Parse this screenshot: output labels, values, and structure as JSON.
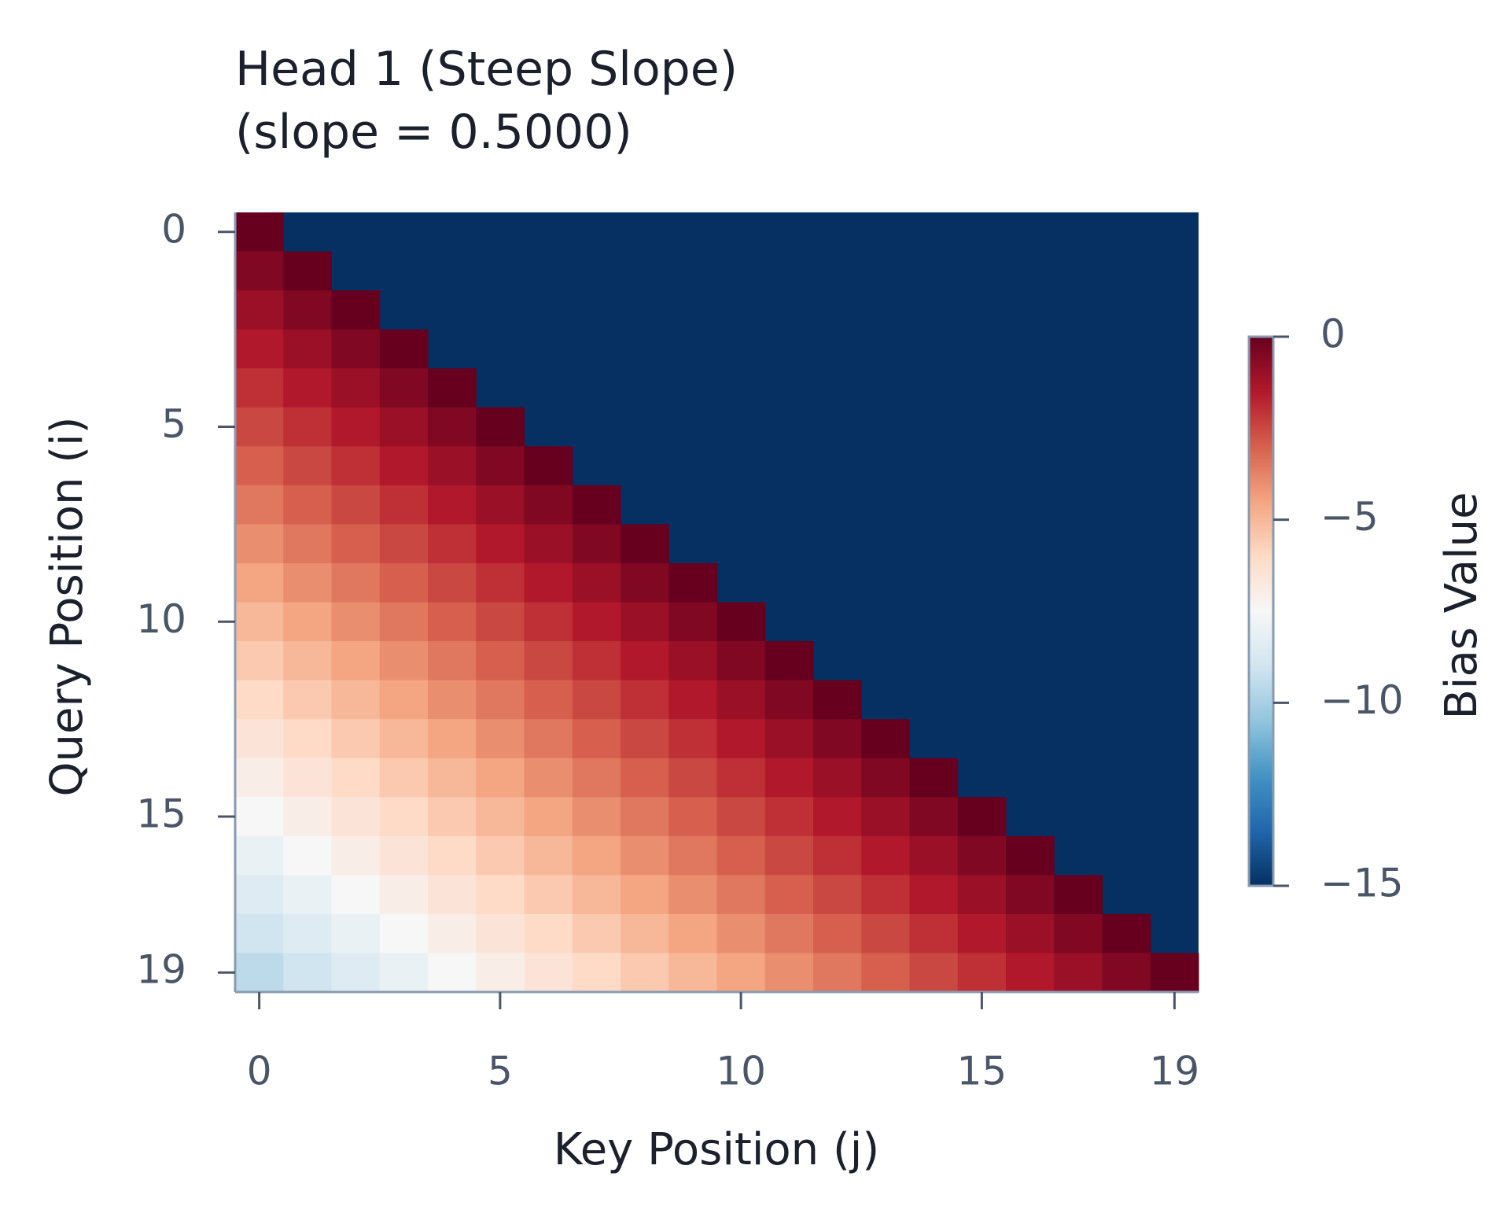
{
  "chart_data": {
    "type": "heatmap",
    "title": "Head 1 (Steep Slope)",
    "subtitle": "(slope = 0.5000)",
    "x_label": "Key Position (j)",
    "y_label": "Query Position (i)",
    "colorbar_label": "Bias Value",
    "xlim": [
      -0.5,
      19.5
    ],
    "ylim": [
      19.5,
      -0.5
    ],
    "xticks": [
      0,
      5,
      10,
      15,
      19
    ],
    "yticks": [
      0,
      5,
      10,
      15,
      19
    ],
    "clim": [
      -15,
      0
    ],
    "cticks": [
      0,
      {
        "value": -5,
        "label": "−5"
      },
      {
        "value": -10,
        "label": "−10"
      },
      {
        "value": -15,
        "label": "−15"
      }
    ],
    "colormap": [
      "#053061",
      "#2166ac",
      "#4393c3",
      "#92c5de",
      "#d1e5f0",
      "#f7f7f7",
      "#fddbc7",
      "#f4a582",
      "#d6604d",
      "#b2182b",
      "#67001f"
    ],
    "mask_color": "#053061",
    "values": [
      [
        0,
        null,
        null,
        null,
        null,
        null,
        null,
        null,
        null,
        null,
        null,
        null,
        null,
        null,
        null,
        null,
        null,
        null,
        null,
        null
      ],
      [
        -0.5,
        0,
        null,
        null,
        null,
        null,
        null,
        null,
        null,
        null,
        null,
        null,
        null,
        null,
        null,
        null,
        null,
        null,
        null,
        null
      ],
      [
        -1,
        -0.5,
        0,
        null,
        null,
        null,
        null,
        null,
        null,
        null,
        null,
        null,
        null,
        null,
        null,
        null,
        null,
        null,
        null,
        null
      ],
      [
        -1.5,
        -1,
        -0.5,
        0,
        null,
        null,
        null,
        null,
        null,
        null,
        null,
        null,
        null,
        null,
        null,
        null,
        null,
        null,
        null,
        null
      ],
      [
        -2,
        -1.5,
        -1,
        -0.5,
        0,
        null,
        null,
        null,
        null,
        null,
        null,
        null,
        null,
        null,
        null,
        null,
        null,
        null,
        null,
        null
      ],
      [
        -2.5,
        -2,
        -1.5,
        -1,
        -0.5,
        0,
        null,
        null,
        null,
        null,
        null,
        null,
        null,
        null,
        null,
        null,
        null,
        null,
        null,
        null
      ],
      [
        -3,
        -2.5,
        -2,
        -1.5,
        -1,
        -0.5,
        0,
        null,
        null,
        null,
        null,
        null,
        null,
        null,
        null,
        null,
        null,
        null,
        null,
        null
      ],
      [
        -3.5,
        -3,
        -2.5,
        -2,
        -1.5,
        -1,
        -0.5,
        0,
        null,
        null,
        null,
        null,
        null,
        null,
        null,
        null,
        null,
        null,
        null,
        null
      ],
      [
        -4,
        -3.5,
        -3,
        -2.5,
        -2,
        -1.5,
        -1,
        -0.5,
        0,
        null,
        null,
        null,
        null,
        null,
        null,
        null,
        null,
        null,
        null,
        null
      ],
      [
        -4.5,
        -4,
        -3.5,
        -3,
        -2.5,
        -2,
        -1.5,
        -1,
        -0.5,
        0,
        null,
        null,
        null,
        null,
        null,
        null,
        null,
        null,
        null,
        null
      ],
      [
        -5,
        -4.5,
        -4,
        -3.5,
        -3,
        -2.5,
        -2,
        -1.5,
        -1,
        -0.5,
        0,
        null,
        null,
        null,
        null,
        null,
        null,
        null,
        null,
        null
      ],
      [
        -5.5,
        -5,
        -4.5,
        -4,
        -3.5,
        -3,
        -2.5,
        -2,
        -1.5,
        -1,
        -0.5,
        0,
        null,
        null,
        null,
        null,
        null,
        null,
        null,
        null
      ],
      [
        -6,
        -5.5,
        -5,
        -4.5,
        -4,
        -3.5,
        -3,
        -2.5,
        -2,
        -1.5,
        -1,
        -0.5,
        0,
        null,
        null,
        null,
        null,
        null,
        null,
        null
      ],
      [
        -6.5,
        -6,
        -5.5,
        -5,
        -4.5,
        -4,
        -3.5,
        -3,
        -2.5,
        -2,
        -1.5,
        -1,
        -0.5,
        0,
        null,
        null,
        null,
        null,
        null,
        null
      ],
      [
        -7,
        -6.5,
        -6,
        -5.5,
        -5,
        -4.5,
        -4,
        -3.5,
        -3,
        -2.5,
        -2,
        -1.5,
        -1,
        -0.5,
        0,
        null,
        null,
        null,
        null,
        null
      ],
      [
        -7.5,
        -7,
        -6.5,
        -6,
        -5.5,
        -5,
        -4.5,
        -4,
        -3.5,
        -3,
        -2.5,
        -2,
        -1.5,
        -1,
        -0.5,
        0,
        null,
        null,
        null,
        null
      ],
      [
        -8,
        -7.5,
        -7,
        -6.5,
        -6,
        -5.5,
        -5,
        -4.5,
        -4,
        -3.5,
        -3,
        -2.5,
        -2,
        -1.5,
        -1,
        -0.5,
        0,
        null,
        null,
        null
      ],
      [
        -8.5,
        -8,
        -7.5,
        -7,
        -6.5,
        -6,
        -5.5,
        -5,
        -4.5,
        -4,
        -3.5,
        -3,
        -2.5,
        -2,
        -1.5,
        -1,
        -0.5,
        0,
        null,
        null
      ],
      [
        -9,
        -8.5,
        -8,
        -7.5,
        -7,
        -6.5,
        -6,
        -5.5,
        -5,
        -4.5,
        -4,
        -3.5,
        -3,
        -2.5,
        -2,
        -1.5,
        -1,
        -0.5,
        0,
        null
      ],
      [
        -9.5,
        -9,
        -8.5,
        -8,
        -7.5,
        -7,
        -6.5,
        -6,
        -5.5,
        -5,
        -4.5,
        -4,
        -3.5,
        -3,
        -2.5,
        -2,
        -1.5,
        -1,
        -0.5,
        0
      ]
    ]
  }
}
